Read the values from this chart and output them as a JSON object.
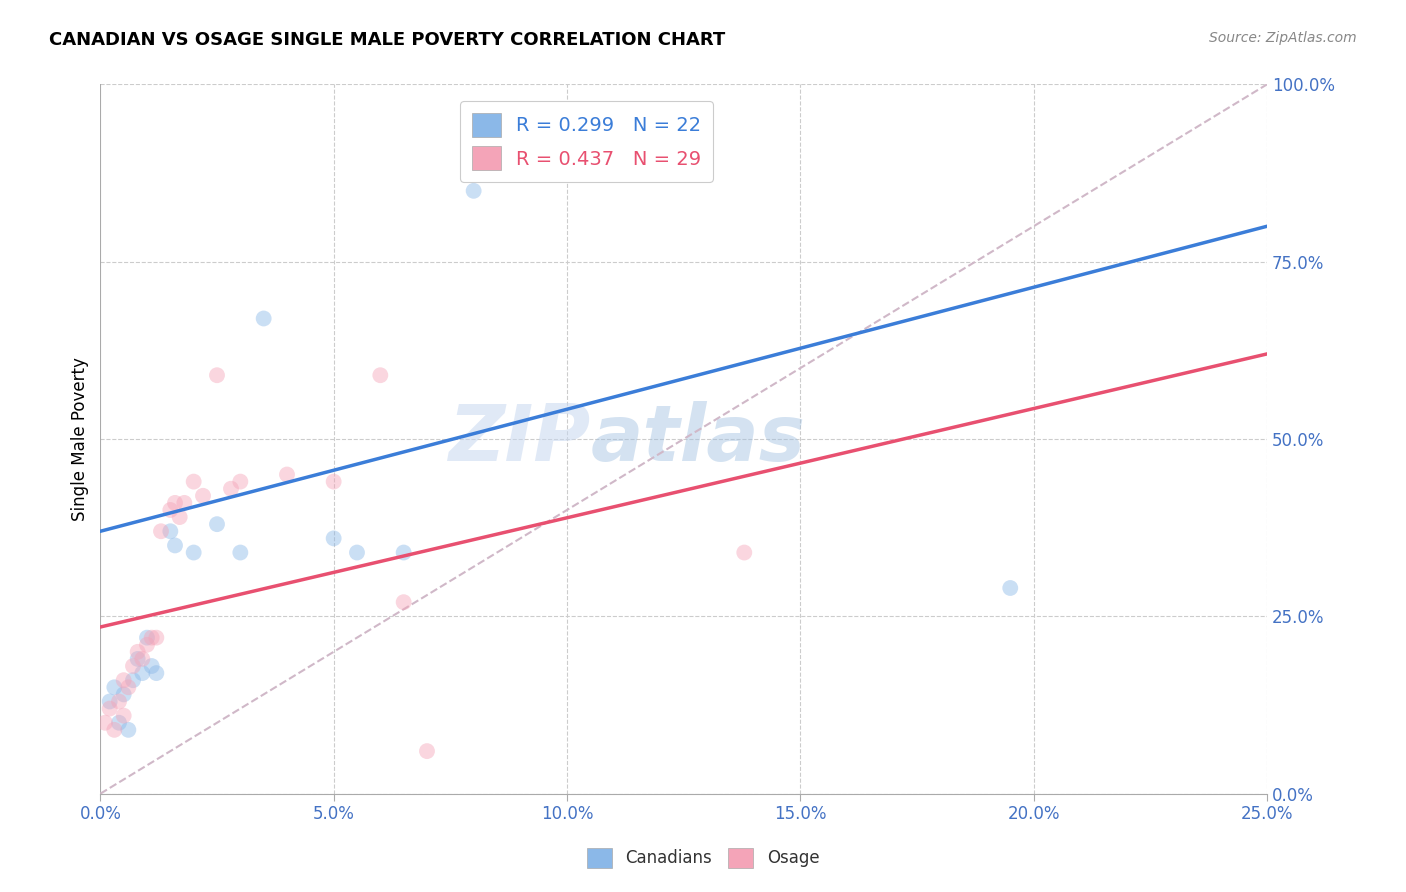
{
  "title": "CANADIAN VS OSAGE SINGLE MALE POVERTY CORRELATION CHART",
  "source": "Source: ZipAtlas.com",
  "ylabel_label": "Single Male Poverty",
  "watermark": "ZIPatlas",
  "xlim": [
    0.0,
    0.25
  ],
  "ylim": [
    0.0,
    1.0
  ],
  "xticks": [
    0.0,
    0.05,
    0.1,
    0.15,
    0.2,
    0.25
  ],
  "yticks": [
    0.0,
    0.25,
    0.5,
    0.75,
    1.0
  ],
  "ytick_labels_right": [
    "0.0%",
    "25.0%",
    "50.0%",
    "75.0%",
    "100.0%"
  ],
  "xtick_labels": [
    "0.0%",
    "5.0%",
    "10.0%",
    "15.0%",
    "20.0%",
    "25.0%"
  ],
  "canadians_x": [
    0.002,
    0.003,
    0.004,
    0.005,
    0.006,
    0.007,
    0.008,
    0.009,
    0.01,
    0.011,
    0.012,
    0.015,
    0.016,
    0.02,
    0.025,
    0.03,
    0.035,
    0.05,
    0.055,
    0.065,
    0.08,
    0.195
  ],
  "canadians_y": [
    0.13,
    0.15,
    0.1,
    0.14,
    0.09,
    0.16,
    0.19,
    0.17,
    0.22,
    0.18,
    0.17,
    0.37,
    0.35,
    0.34,
    0.38,
    0.34,
    0.67,
    0.36,
    0.34,
    0.34,
    0.85,
    0.29
  ],
  "osage_x": [
    0.001,
    0.002,
    0.003,
    0.004,
    0.005,
    0.005,
    0.006,
    0.007,
    0.008,
    0.009,
    0.01,
    0.011,
    0.012,
    0.013,
    0.015,
    0.016,
    0.017,
    0.018,
    0.02,
    0.022,
    0.025,
    0.028,
    0.03,
    0.04,
    0.05,
    0.06,
    0.065,
    0.07,
    0.138
  ],
  "osage_y": [
    0.1,
    0.12,
    0.09,
    0.13,
    0.11,
    0.16,
    0.15,
    0.18,
    0.2,
    0.19,
    0.21,
    0.22,
    0.22,
    0.37,
    0.4,
    0.41,
    0.39,
    0.41,
    0.44,
    0.42,
    0.59,
    0.43,
    0.44,
    0.45,
    0.44,
    0.59,
    0.27,
    0.06,
    0.34
  ],
  "canadian_color": "#8BB8E8",
  "osage_color": "#F4A4B8",
  "canadian_line_color": "#3B7DD8",
  "osage_line_color": "#E85070",
  "ref_line_color": "#D0B8C8",
  "legend_canadian_R": "0.299",
  "legend_canadian_N": "22",
  "legend_osage_R": "0.437",
  "legend_osage_N": "29",
  "grid_color": "#CCCCCC",
  "title_color": "#000000",
  "right_tick_color": "#4472C4",
  "bottom_tick_color": "#4472C4",
  "marker_size": 130,
  "marker_alpha": 0.45,
  "line_width": 2.5,
  "canadian_line_intercept": 0.37,
  "canadian_line_slope": 1.72,
  "osage_line_intercept": 0.235,
  "osage_line_slope": 1.54
}
